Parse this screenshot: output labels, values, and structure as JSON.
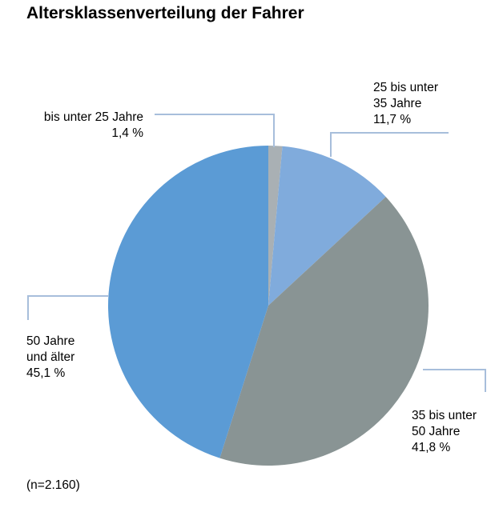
{
  "chart_data": {
    "type": "pie",
    "title": "Altersklassenverteilung der Fahrer",
    "note": "(n=2.160)",
    "start": "top",
    "direction": "clockwise",
    "slices": [
      {
        "label_lines": [
          "bis unter 25 Jahre"
        ],
        "value_text": "1,4 %",
        "value": 1.4,
        "color": "#a9b0b4"
      },
      {
        "label_lines": [
          "25 bis unter",
          "35 Jahre"
        ],
        "value_text": "11,7 %",
        "value": 11.7,
        "color": "#80abdc"
      },
      {
        "label_lines": [
          "35 bis unter",
          "50 Jahre"
        ],
        "value_text": "41,8 %",
        "value": 41.8,
        "color": "#899494"
      },
      {
        "label_lines": [
          "50 Jahre",
          "und älter"
        ],
        "value_text": "45,1 %",
        "value": 45.1,
        "color": "#5b9bd5"
      }
    ],
    "leader_color": "#a7bedb"
  }
}
